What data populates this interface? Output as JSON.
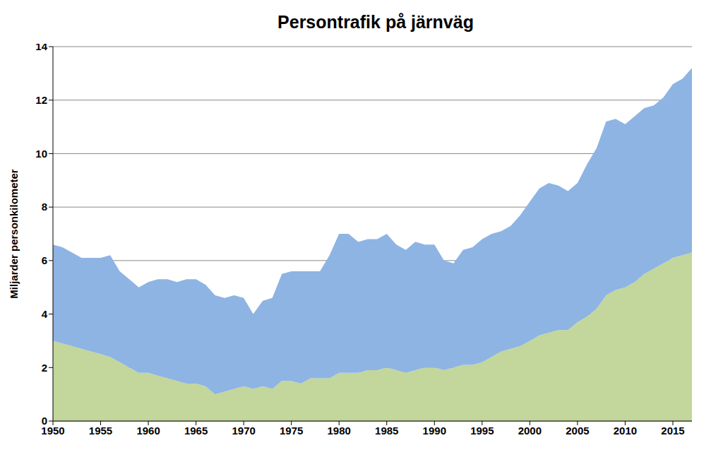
{
  "chart_data": {
    "type": "area",
    "title": "Persontrafik på järnväg",
    "y_label": "Miljarder personkilometer",
    "stacked": true,
    "grid": true,
    "x": [
      1950,
      1951,
      1952,
      1953,
      1954,
      1955,
      1956,
      1957,
      1958,
      1959,
      1960,
      1961,
      1962,
      1963,
      1964,
      1965,
      1966,
      1967,
      1968,
      1969,
      1970,
      1971,
      1972,
      1973,
      1974,
      1975,
      1976,
      1977,
      1978,
      1979,
      1980,
      1981,
      1982,
      1983,
      1984,
      1985,
      1986,
      1987,
      1988,
      1989,
      1990,
      1991,
      1992,
      1993,
      1994,
      1995,
      1996,
      1997,
      1998,
      1999,
      2000,
      2001,
      2002,
      2003,
      2004,
      2005,
      2006,
      2007,
      2008,
      2009,
      2010,
      2011,
      2012,
      2013,
      2014,
      2015,
      2016,
      2017
    ],
    "series": [
      {
        "color": "#c3d69b",
        "values": [
          3.0,
          2.9,
          2.8,
          2.7,
          2.6,
          2.5,
          2.4,
          2.2,
          2.0,
          1.8,
          1.8,
          1.7,
          1.6,
          1.5,
          1.4,
          1.4,
          1.3,
          1.0,
          1.1,
          1.2,
          1.3,
          1.2,
          1.3,
          1.2,
          1.5,
          1.5,
          1.4,
          1.6,
          1.6,
          1.6,
          1.8,
          1.8,
          1.8,
          1.9,
          1.9,
          2.0,
          1.9,
          1.8,
          1.9,
          2.0,
          2.0,
          1.9,
          2.0,
          2.1,
          2.1,
          2.2,
          2.4,
          2.6,
          2.7,
          2.8,
          3.0,
          3.2,
          3.3,
          3.4,
          3.4,
          3.7,
          3.9,
          4.2,
          4.7,
          4.9,
          5.0,
          5.2,
          5.5,
          5.7,
          5.9,
          6.1,
          6.2,
          6.3
        ]
      },
      {
        "color": "#8eb4e3",
        "values": [
          3.6,
          3.6,
          3.5,
          3.4,
          3.5,
          3.6,
          3.8,
          3.4,
          3.3,
          3.2,
          3.4,
          3.6,
          3.7,
          3.7,
          3.9,
          3.9,
          3.8,
          3.7,
          3.5,
          3.5,
          3.3,
          2.8,
          3.2,
          3.4,
          4.0,
          4.1,
          4.2,
          4.0,
          4.0,
          4.6,
          5.2,
          5.2,
          4.9,
          4.9,
          4.9,
          5.0,
          4.7,
          4.6,
          4.8,
          4.6,
          4.6,
          4.1,
          3.9,
          4.3,
          4.4,
          4.6,
          4.6,
          4.5,
          4.6,
          4.9,
          5.2,
          5.5,
          5.6,
          5.4,
          5.2,
          5.2,
          5.7,
          6.0,
          6.5,
          6.4,
          6.1,
          6.2,
          6.2,
          6.1,
          6.2,
          6.5,
          6.6,
          6.9
        ]
      }
    ],
    "xlim": [
      1950,
      2017
    ],
    "xticks": [
      1950,
      1955,
      1960,
      1965,
      1970,
      1975,
      1980,
      1985,
      1990,
      1995,
      2000,
      2005,
      2010,
      2015
    ],
    "ylim": [
      0,
      14
    ],
    "yticks": [
      0,
      2,
      4,
      6,
      8,
      10,
      12,
      14
    ]
  }
}
